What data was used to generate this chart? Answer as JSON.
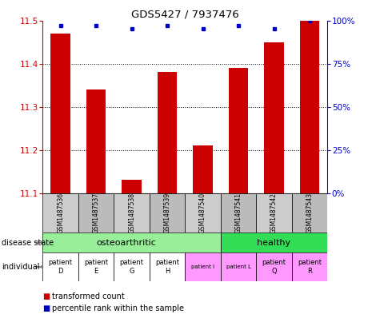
{
  "title": "GDS5427 / 7937476",
  "samples": [
    "GSM1487536",
    "GSM1487537",
    "GSM1487538",
    "GSM1487539",
    "GSM1487540",
    "GSM1487541",
    "GSM1487542",
    "GSM1487543"
  ],
  "red_values": [
    11.47,
    11.34,
    11.13,
    11.38,
    11.21,
    11.39,
    11.45,
    11.5
  ],
  "blue_values": [
    97,
    97,
    95,
    97,
    95,
    97,
    95,
    100
  ],
  "ylim_left": [
    11.1,
    11.5
  ],
  "ylim_right": [
    0,
    100
  ],
  "yticks_left": [
    11.1,
    11.2,
    11.3,
    11.4,
    11.5
  ],
  "yticks_right": [
    0,
    25,
    50,
    75,
    100
  ],
  "bar_color": "#CC0000",
  "dot_color": "#0000CC",
  "left_axis_color": "#CC0000",
  "right_axis_color": "#0000CC",
  "grid_color": "#000000",
  "osteo_color": "#99EE99",
  "healthy_color": "#33DD55",
  "indiv_white_color": "#FFFFFF",
  "indiv_pink_color": "#FF99FF",
  "sample_gray_colors": [
    "#CCCCCC",
    "#BBBBBB",
    "#CCCCCC",
    "#BBBBBB",
    "#CCCCCC",
    "#BBBBBB",
    "#CCCCCC",
    "#BBBBBB"
  ],
  "indiv_colors": [
    "#FFFFFF",
    "#FFFFFF",
    "#FFFFFF",
    "#FFFFFF",
    "#FF99FF",
    "#FF99FF",
    "#FF99FF",
    "#FF99FF"
  ],
  "individual_labels": [
    "patient\nD",
    "patient\nE",
    "patient\nG",
    "patient\nH",
    "patient I",
    "patient L",
    "patient\nQ",
    "patient\nR"
  ],
  "individual_bold": [
    true,
    true,
    true,
    true,
    false,
    false,
    true,
    true
  ]
}
